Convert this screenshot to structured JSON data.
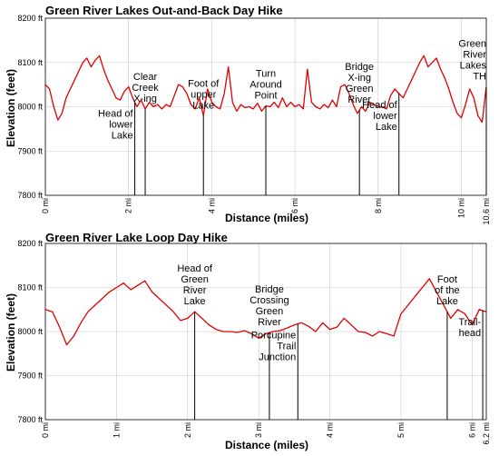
{
  "chart_data": [
    {
      "type": "line",
      "title": "Green River Lakes Out-and-Back Day Hike",
      "xlabel": "Distance (miles)",
      "ylabel": "Elevation (feet)",
      "xlim": [
        0,
        10.6
      ],
      "ylim": [
        7800,
        8200
      ],
      "grid": true,
      "xticks": [
        {
          "v": 0,
          "label": "0 mi"
        },
        {
          "v": 2,
          "label": "2 mi"
        },
        {
          "v": 4,
          "label": "4 mi"
        },
        {
          "v": 6,
          "label": "6 mi"
        },
        {
          "v": 8,
          "label": "8 mi"
        },
        {
          "v": 10,
          "label": "10 mi"
        },
        {
          "v": 10.6,
          "label": "10.6 mi"
        }
      ],
      "yticks": [
        {
          "v": 7800,
          "label": "7800 ft"
        },
        {
          "v": 7900,
          "label": "7900 ft"
        },
        {
          "v": 8000,
          "label": "8000 ft"
        },
        {
          "v": 8100,
          "label": "8100 ft"
        },
        {
          "v": 8200,
          "label": "8200 ft"
        }
      ],
      "series": [
        {
          "x": [
            0,
            0.1,
            0.2,
            0.3,
            0.4,
            0.5,
            0.6,
            0.7,
            0.8,
            0.9,
            1.0,
            1.1,
            1.2,
            1.3,
            1.4,
            1.5,
            1.6,
            1.7,
            1.8,
            1.9,
            2.0,
            2.1,
            2.2,
            2.3,
            2.4,
            2.5,
            2.6,
            2.7,
            2.8,
            2.9,
            3.0,
            3.1,
            3.2,
            3.3,
            3.4,
            3.5,
            3.6,
            3.7,
            3.8,
            3.9,
            4.0,
            4.1,
            4.2,
            4.3,
            4.4,
            4.5,
            4.6,
            4.7,
            4.8,
            4.9,
            5.0,
            5.1,
            5.2,
            5.3,
            5.4,
            5.5,
            5.6,
            5.7,
            5.8,
            5.9,
            6.0,
            6.1,
            6.2,
            6.3,
            6.4,
            6.5,
            6.6,
            6.7,
            6.8,
            6.9,
            7.0,
            7.1,
            7.2,
            7.3,
            7.4,
            7.5,
            7.6,
            7.7,
            7.8,
            7.9,
            8.0,
            8.1,
            8.2,
            8.3,
            8.4,
            8.5,
            8.6,
            8.7,
            8.8,
            8.9,
            9.0,
            9.1,
            9.2,
            9.3,
            9.4,
            9.5,
            9.6,
            9.7,
            9.8,
            9.9,
            10.0,
            10.1,
            10.2,
            10.3,
            10.4,
            10.5,
            10.6
          ],
          "y": [
            8050,
            8040,
            8000,
            7970,
            7985,
            8020,
            8040,
            8060,
            8080,
            8100,
            8110,
            8090,
            8105,
            8115,
            8085,
            8060,
            8040,
            8020,
            8015,
            8035,
            8045,
            8020,
            8000,
            8015,
            7995,
            8010,
            8000,
            8005,
            7995,
            8005,
            8000,
            8025,
            8050,
            8045,
            8030,
            8005,
            7995,
            8020,
            7980,
            8040,
            8010,
            8000,
            7995,
            8030,
            8090,
            8010,
            7990,
            8005,
            7998,
            8000,
            7995,
            8008,
            7990,
            8002,
            8000,
            8010,
            7998,
            8020,
            8000,
            8010,
            8000,
            8005,
            7995,
            8085,
            8010,
            8000,
            7995,
            8005,
            7998,
            8015,
            8000,
            8045,
            8050,
            8030,
            8005,
            7985,
            8000,
            7990,
            8010,
            8005,
            8000,
            8000,
            7995,
            8025,
            8040,
            8030,
            8020,
            8040,
            8060,
            8080,
            8100,
            8115,
            8090,
            8100,
            8110,
            8085,
            8065,
            8040,
            8010,
            7985,
            7975,
            8005,
            8040,
            8020,
            7980,
            7965,
            8045
          ]
        }
      ],
      "annotations": [
        {
          "x": 2.15,
          "lines": [
            "Head of",
            "lower",
            "Lake"
          ],
          "pos": "below"
        },
        {
          "x": 2.4,
          "lines": [
            "Clear",
            "Creek",
            "X-ing"
          ],
          "pos": "above"
        },
        {
          "x": 3.8,
          "lines": [
            "Foot of",
            "upper",
            "Lake"
          ],
          "pos": "above"
        },
        {
          "x": 5.3,
          "lines": [
            "Turn",
            "Around",
            "Point"
          ],
          "pos": "above"
        },
        {
          "x": 7.55,
          "lines": [
            "Bridge",
            "X-ing",
            "Green",
            "River"
          ],
          "pos": "above"
        },
        {
          "x": 8.5,
          "lines": [
            "Head of",
            "lower",
            "Lake"
          ],
          "pos": "below"
        },
        {
          "x": 10.6,
          "lines": [
            "Green",
            "River",
            "Lakes",
            "TH"
          ],
          "pos": "above"
        }
      ]
    },
    {
      "type": "line",
      "title": "Green River Lake Loop Day Hike",
      "xlabel": "Distance (miles)",
      "ylabel": "Elevation (feet)",
      "xlim": [
        0,
        6.2
      ],
      "ylim": [
        7800,
        8200
      ],
      "grid": true,
      "xticks": [
        {
          "v": 0,
          "label": "0 mi"
        },
        {
          "v": 1,
          "label": "1 mi"
        },
        {
          "v": 2,
          "label": "2 mi"
        },
        {
          "v": 3,
          "label": "3 mi"
        },
        {
          "v": 4,
          "label": "4 mi"
        },
        {
          "v": 5,
          "label": "5 mi"
        },
        {
          "v": 6,
          "label": "6 mi"
        },
        {
          "v": 6.2,
          "label": "6.2 mi"
        }
      ],
      "yticks": [
        {
          "v": 7800,
          "label": "7800 ft"
        },
        {
          "v": 7900,
          "label": "7900 ft"
        },
        {
          "v": 8000,
          "label": "8000 ft"
        },
        {
          "v": 8100,
          "label": "8100 ft"
        },
        {
          "v": 8200,
          "label": "8200 ft"
        }
      ],
      "series": [
        {
          "x": [
            0,
            0.1,
            0.2,
            0.3,
            0.4,
            0.5,
            0.6,
            0.7,
            0.8,
            0.9,
            1.0,
            1.1,
            1.2,
            1.3,
            1.4,
            1.5,
            1.6,
            1.7,
            1.8,
            1.9,
            2.0,
            2.1,
            2.2,
            2.3,
            2.4,
            2.5,
            2.6,
            2.7,
            2.8,
            2.9,
            3.0,
            3.1,
            3.2,
            3.3,
            3.4,
            3.5,
            3.6,
            3.7,
            3.8,
            3.9,
            4.0,
            4.1,
            4.2,
            4.3,
            4.4,
            4.5,
            4.6,
            4.7,
            4.8,
            4.9,
            5.0,
            5.1,
            5.2,
            5.3,
            5.4,
            5.5,
            5.6,
            5.7,
            5.8,
            5.9,
            6.0,
            6.1,
            6.2
          ],
          "y": [
            8050,
            8045,
            8010,
            7970,
            7990,
            8020,
            8045,
            8060,
            8075,
            8090,
            8100,
            8110,
            8095,
            8105,
            8115,
            8090,
            8075,
            8060,
            8045,
            8025,
            8030,
            8045,
            8030,
            8015,
            8005,
            8000,
            8000,
            7998,
            8002,
            7995,
            7985,
            7995,
            8000,
            8002,
            8008,
            8015,
            8020,
            8012,
            8000,
            8020,
            8005,
            8010,
            8030,
            8015,
            8000,
            7998,
            7990,
            8000,
            7995,
            7990,
            8040,
            8060,
            8080,
            8100,
            8120,
            8090,
            8060,
            8030,
            8050,
            8040,
            8015,
            8050,
            8045
          ]
        }
      ],
      "annotations": [
        {
          "x": 2.1,
          "lines": [
            "Head of",
            "Green",
            "River",
            "Lake"
          ],
          "pos": "above"
        },
        {
          "x": 3.15,
          "lines": [
            "Bridge",
            "Crossing",
            "Green",
            "River"
          ],
          "pos": "above"
        },
        {
          "x": 3.55,
          "lines": [
            "Porcupine",
            "Trail",
            "Junction"
          ],
          "pos": "below"
        },
        {
          "x": 5.65,
          "lines": [
            "Foot",
            "of the",
            "Lake"
          ],
          "pos": "above"
        },
        {
          "x": 6.15,
          "lines": [
            "Trail-",
            "head"
          ],
          "pos": "below"
        }
      ]
    }
  ]
}
